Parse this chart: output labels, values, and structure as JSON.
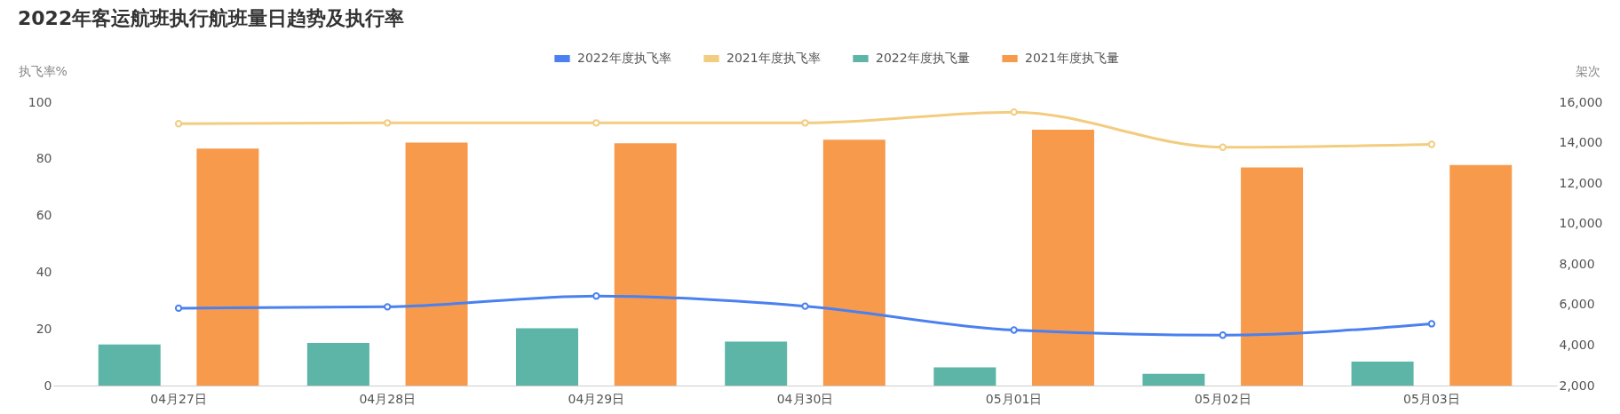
{
  "chart_data": {
    "type": "bar",
    "title": "2022年客运航班执行航班量日趋势及执行率",
    "ylabel": "执飞率%",
    "y2label": "架次",
    "categories": [
      "04月27日",
      "04月28日",
      "04月29日",
      "04月30日",
      "05月01日",
      "05月02日",
      "05月03日"
    ],
    "series": [
      {
        "name": "2022年度执飞率",
        "type": "line",
        "axis": "y",
        "color": "#4a80f0",
        "values": [
          27.3,
          27.8,
          31.6,
          28,
          19.6,
          17.8,
          21.8
        ]
      },
      {
        "name": "2021年度执飞率",
        "type": "line",
        "axis": "y",
        "color": "#f2cd80",
        "values": [
          92.4,
          92.7,
          92.7,
          92.7,
          96.5,
          84.1,
          85.1
        ]
      },
      {
        "name": "2022年度执飞量",
        "axis": "y2",
        "color": "#5cb5a6",
        "values": [
          4030,
          4110,
          4830,
          4170,
          2900,
          2580,
          3180
        ]
      },
      {
        "name": "2021年度执飞量",
        "axis": "y2",
        "color": "#f79a4b",
        "values": [
          13710,
          14000,
          13970,
          14150,
          14640,
          12770,
          12890
        ]
      }
    ],
    "ylim": [
      0,
      100
    ],
    "yticks": [
      0,
      20,
      40,
      60,
      80,
      100
    ],
    "y2lim": [
      2000,
      16000
    ],
    "y2ticks": [
      {
        "value": 2000,
        "label": "2,000"
      },
      {
        "value": 4000,
        "label": "4,000"
      },
      {
        "value": 6000,
        "label": "6,000"
      },
      {
        "value": 8000,
        "label": "8,000"
      },
      {
        "value": 10000,
        "label": "10,000"
      },
      {
        "value": 12000,
        "label": "12,000"
      },
      {
        "value": 14000,
        "label": "14,000"
      },
      {
        "value": 16000,
        "label": "16,000"
      }
    ],
    "marker": "circle",
    "legend": "top",
    "grid": false
  }
}
